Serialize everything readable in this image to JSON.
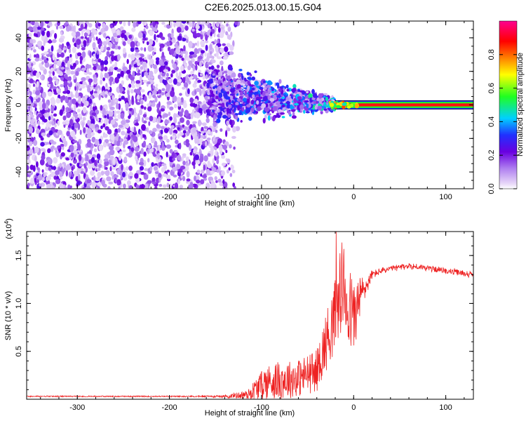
{
  "title": "C2E6.2025.013.00.15.G04",
  "chart_data": [
    {
      "type": "heatmap",
      "xlabel": "Height of straight line (km)",
      "ylabel": "Frequency (Hz)",
      "xlim": [
        -355,
        130
      ],
      "ylim": [
        -50,
        50
      ],
      "x_ticks": [
        -300,
        -200,
        -100,
        0,
        100
      ],
      "y_ticks": [
        -40,
        -20,
        0,
        20,
        40
      ],
      "colorbar": {
        "label": "Normalized spectral amplitude",
        "range": [
          0,
          1
        ],
        "ticks": [
          0.0,
          0.2,
          0.4,
          0.6,
          0.8
        ],
        "colors": [
          "#ffffff",
          "#c8a0f0",
          "#6a00e0",
          "#2020ff",
          "#00e0ff",
          "#20ff20",
          "#ffff00",
          "#ff8000",
          "#ff0000",
          "#ff0080"
        ]
      },
      "regions": [
        {
          "x_range": [
            -355,
            -125
          ],
          "freq_range": [
            -50,
            50
          ],
          "amplitude": 0.15
        },
        {
          "x_range": [
            -160,
            -20
          ],
          "freq_range": [
            -15,
            15
          ],
          "amplitude": 0.35
        },
        {
          "x_range": [
            -20,
            130
          ],
          "freq_range": [
            -1.5,
            1.5
          ],
          "amplitude": 1.0
        }
      ]
    },
    {
      "type": "line",
      "xlabel": "Height of straight line (km)",
      "ylabel": "SNR (10 * v/v)",
      "y_scale_label": "(x10",
      "y_scale_exp": "4",
      "y_scale_close": ")",
      "xlim": [
        -355,
        130
      ],
      "ylim": [
        0,
        1.75
      ],
      "x_ticks": [
        -300,
        -200,
        -100,
        0,
        100
      ],
      "y_ticks": [
        0.5,
        1.0,
        1.5
      ],
      "color": "#ee2222",
      "x": [
        -355,
        -300,
        -200,
        -140,
        -115,
        -105,
        -95,
        -80,
        -60,
        -40,
        -25,
        -18,
        -12,
        -5,
        0,
        8,
        15,
        20,
        30,
        45,
        60,
        80,
        100,
        115,
        130
      ],
      "y": [
        0.03,
        0.03,
        0.03,
        0.03,
        0.05,
        0.12,
        0.18,
        0.2,
        0.22,
        0.3,
        0.75,
        0.9,
        1.2,
        0.95,
        0.85,
        1.1,
        1.2,
        1.3,
        1.34,
        1.37,
        1.39,
        1.37,
        1.34,
        1.32,
        1.3
      ],
      "noise": [
        0,
        0,
        0,
        0.01,
        0.05,
        0.12,
        0.18,
        0.2,
        0.2,
        0.22,
        0.35,
        0.45,
        0.5,
        0.45,
        0.4,
        0.2,
        0.08,
        0.05,
        0.03,
        0.03,
        0.03,
        0.03,
        0.03,
        0.03,
        0.03
      ]
    }
  ]
}
